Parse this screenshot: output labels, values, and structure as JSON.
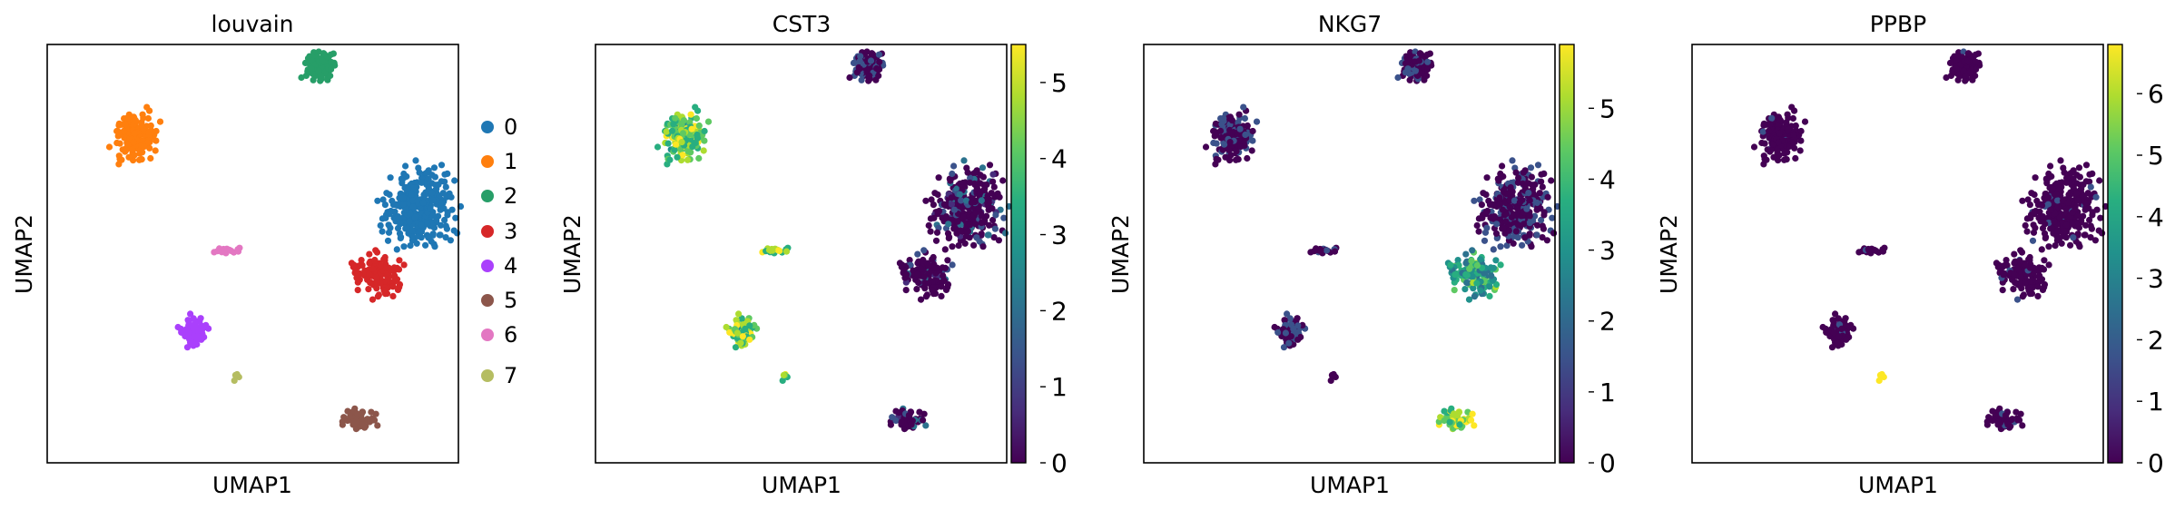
{
  "chart_data": [
    {
      "type": "scatter",
      "title": "louvain",
      "xlabel": "UMAP1",
      "ylabel": "UMAP2",
      "color_by": "category",
      "legend": {
        "placement": "right",
        "entries": [
          {
            "label": "0",
            "color": "#1f77b4"
          },
          {
            "label": "1",
            "color": "#ff7f0e"
          },
          {
            "label": "2",
            "color": "#279e68"
          },
          {
            "label": "3",
            "color": "#d62728"
          },
          {
            "label": "4",
            "color": "#aa40fc"
          },
          {
            "label": "5",
            "color": "#8c564b"
          },
          {
            "label": "6",
            "color": "#e377c2"
          },
          {
            "label": "7",
            "color": "#b5bd61"
          }
        ]
      }
    },
    {
      "type": "scatter",
      "title": "CST3",
      "xlabel": "UMAP1",
      "ylabel": "UMAP2",
      "color_by": "expression",
      "colormap": "viridis",
      "colorbar": {
        "min": 0,
        "max": 5.5,
        "ticks": [
          "0",
          "1",
          "2",
          "3",
          "4",
          "5"
        ]
      }
    },
    {
      "type": "scatter",
      "title": "NKG7",
      "xlabel": "UMAP1",
      "ylabel": "UMAP2",
      "color_by": "expression",
      "colormap": "viridis",
      "colorbar": {
        "min": 0,
        "max": 5.9,
        "ticks": [
          "0",
          "1",
          "2",
          "3",
          "4",
          "5"
        ]
      }
    },
    {
      "type": "scatter",
      "title": "PPBP",
      "xlabel": "UMAP1",
      "ylabel": "UMAP2",
      "color_by": "expression",
      "colormap": "viridis",
      "colorbar": {
        "min": 0,
        "max": 6.8,
        "ticks": [
          "0",
          "1",
          "2",
          "3",
          "4",
          "5",
          "6"
        ]
      }
    }
  ]
}
